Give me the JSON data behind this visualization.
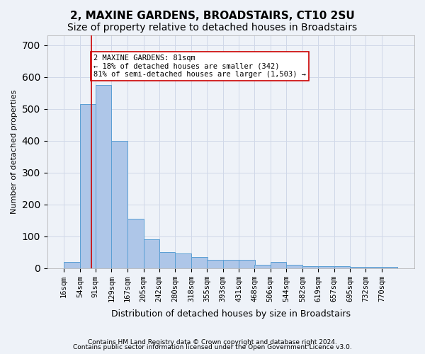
{
  "title": "2, MAXINE GARDENS, BROADSTAIRS, CT10 2SU",
  "subtitle": "Size of property relative to detached houses in Broadstairs",
  "xlabel": "Distribution of detached houses by size in Broadstairs",
  "ylabel": "Number of detached properties",
  "footnote1": "Contains HM Land Registry data © Crown copyright and database right 2024.",
  "footnote2": "Contains public sector information licensed under the Open Government Licence v3.0.",
  "bin_labels": [
    "16sqm",
    "54sqm",
    "91sqm",
    "129sqm",
    "167sqm",
    "205sqm",
    "242sqm",
    "280sqm",
    "318sqm",
    "355sqm",
    "393sqm",
    "431sqm",
    "468sqm",
    "506sqm",
    "544sqm",
    "582sqm",
    "619sqm",
    "657sqm",
    "695sqm",
    "732sqm",
    "770sqm"
  ],
  "bin_edges": [
    16,
    54,
    91,
    129,
    167,
    205,
    242,
    280,
    318,
    355,
    393,
    431,
    468,
    506,
    544,
    582,
    619,
    657,
    695,
    732,
    770
  ],
  "bar_heights": [
    20,
    515,
    575,
    400,
    155,
    90,
    50,
    45,
    35,
    25,
    25,
    25,
    10,
    20,
    10,
    5,
    5,
    5,
    3,
    3,
    3
  ],
  "bar_color": "#aec6e8",
  "bar_edge_color": "#5a9fd4",
  "property_size": 81,
  "property_line_color": "#cc0000",
  "annotation_text": "2 MAXINE GARDENS: 81sqm\n← 18% of detached houses are smaller (342)\n81% of semi-detached houses are larger (1,503) →",
  "annotation_box_color": "#ffffff",
  "annotation_box_edge": "#cc0000",
  "ylim": [
    0,
    730
  ],
  "yticks": [
    0,
    100,
    200,
    300,
    400,
    500,
    600,
    700
  ],
  "grid_color": "#d0d8e8",
  "background_color": "#eef2f8",
  "axes_background": "#eef2f8",
  "title_fontsize": 11,
  "subtitle_fontsize": 10
}
